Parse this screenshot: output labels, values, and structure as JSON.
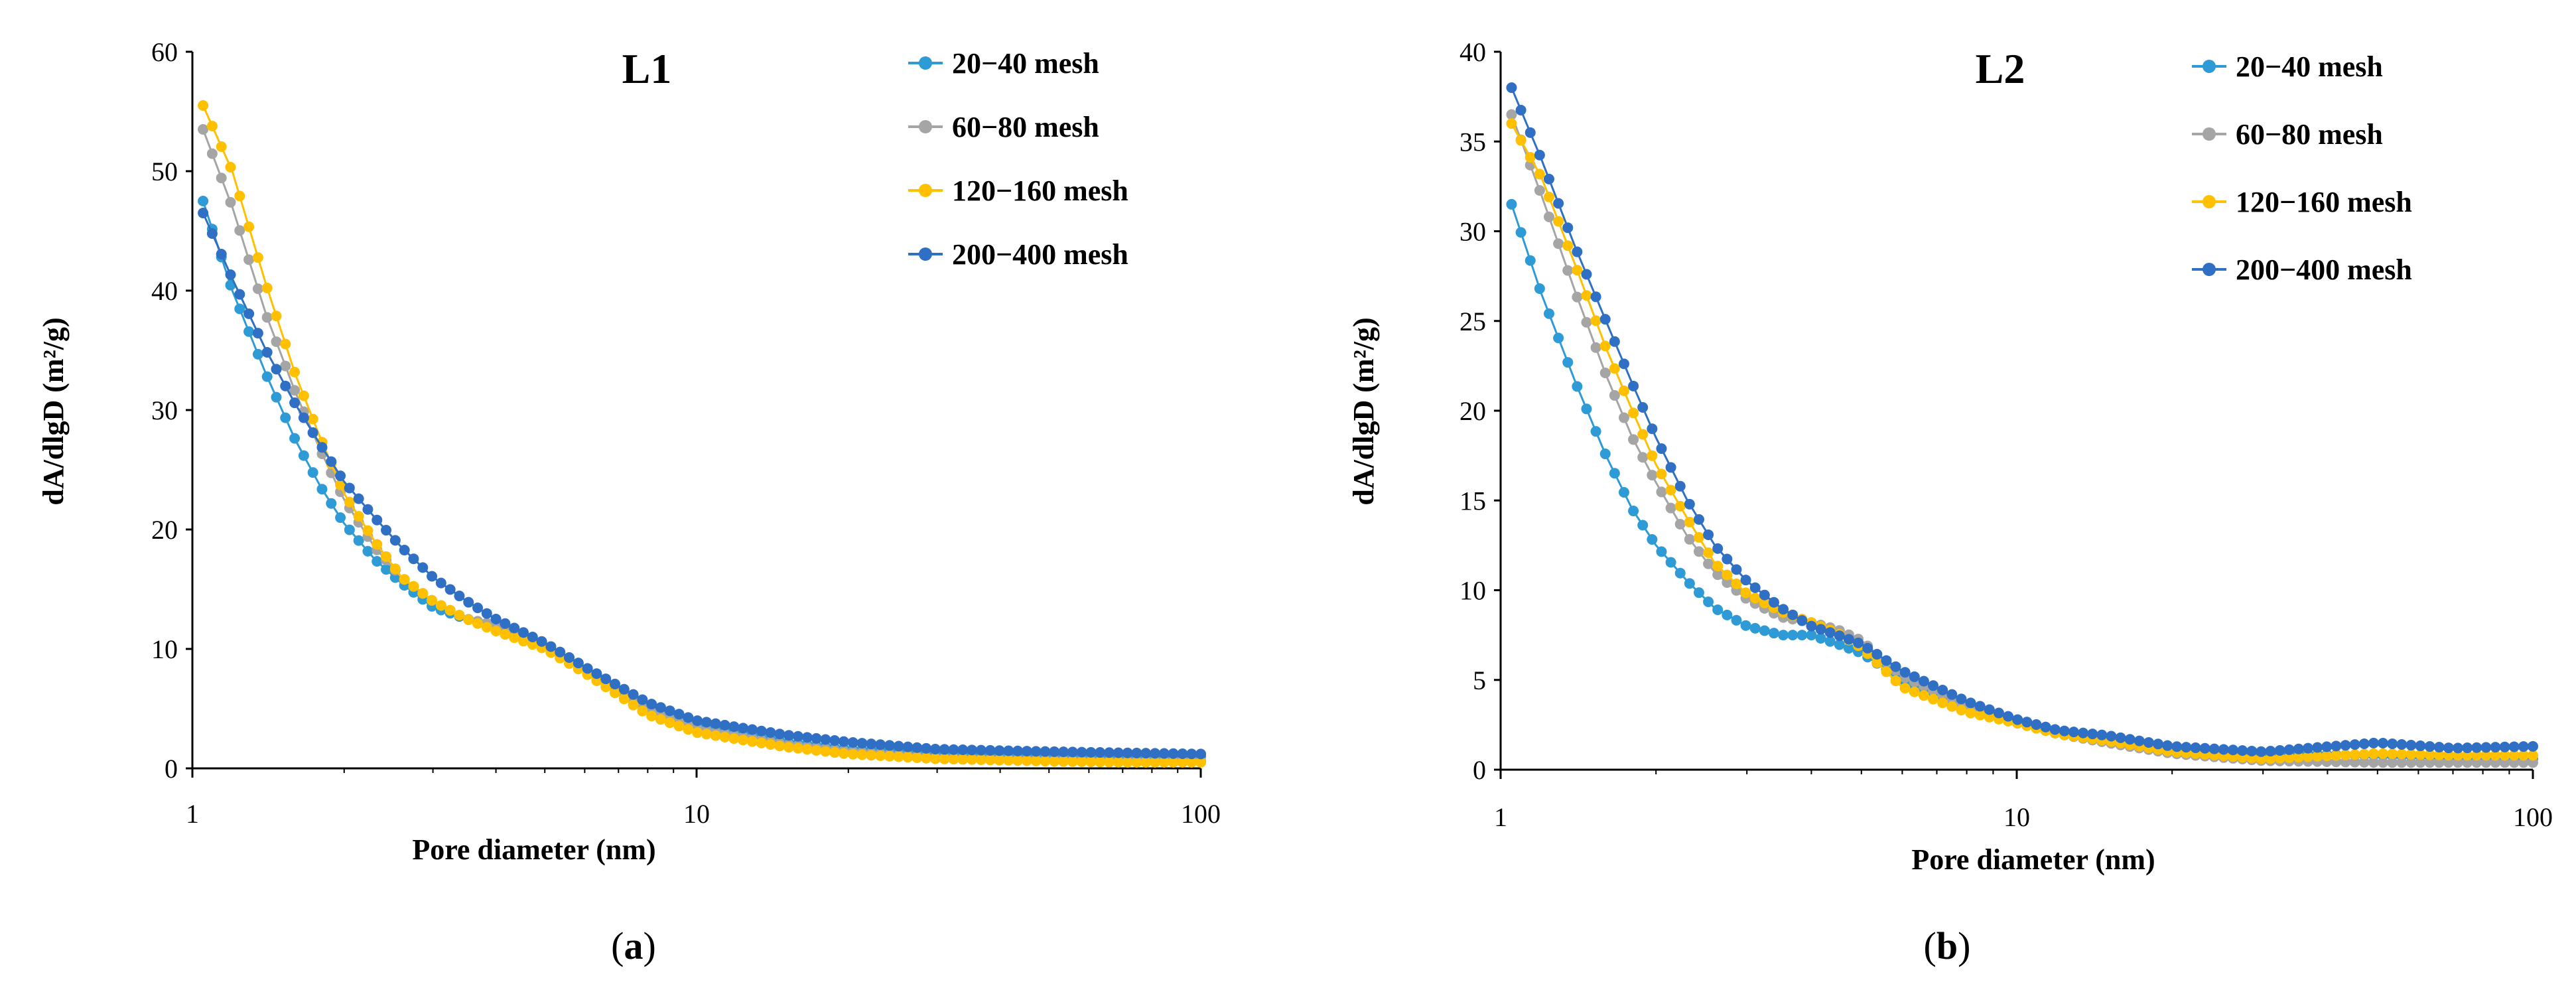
{
  "chart_data": [
    {
      "type": "line",
      "title": "L1",
      "caption_letter": "a",
      "xlabel": "Pore diameter (nm)",
      "ylabel": "dA/dlgD (m²/g)",
      "xscale": "log",
      "xlim": [
        1,
        100
      ],
      "ylim": [
        0,
        60
      ],
      "xticks": [
        1,
        10,
        100
      ],
      "yticks": [
        0,
        10,
        20,
        30,
        40,
        50,
        60
      ],
      "legend_position": "top-right",
      "series": [
        {
          "name": "20−40 mesh",
          "color": "#2e9bd6",
          "x": [
            1.05,
            1.2,
            1.4,
            1.6,
            1.8,
            2.0,
            2.3,
            2.6,
            3.0,
            3.5,
            4.0,
            5.0,
            6.0,
            8.0,
            10,
            15,
            20,
            30,
            50,
            70,
            100
          ],
          "y": [
            47.5,
            40.0,
            33.0,
            27.5,
            23.5,
            20.5,
            17.5,
            15.5,
            13.5,
            12.5,
            12.0,
            10.5,
            8.5,
            5.0,
            3.5,
            2.2,
            1.6,
            1.2,
            1.0,
            1.0,
            1.0
          ]
        },
        {
          "name": "60−80 mesh",
          "color": "#a5a5a5",
          "x": [
            1.05,
            1.2,
            1.4,
            1.6,
            1.8,
            2.0,
            2.3,
            2.6,
            3.0,
            3.5,
            4.0,
            5.0,
            6.0,
            8.0,
            10,
            15,
            20,
            30,
            50,
            70,
            100
          ],
          "y": [
            53.5,
            47.0,
            38.0,
            31.5,
            26.5,
            22.5,
            18.5,
            16.0,
            14.0,
            12.5,
            12.0,
            10.5,
            8.5,
            4.8,
            3.3,
            2.0,
            1.4,
            0.9,
            0.7,
            0.6,
            0.6
          ]
        },
        {
          "name": "120−160 mesh",
          "color": "#ffc000",
          "x": [
            1.05,
            1.2,
            1.4,
            1.6,
            1.8,
            2.0,
            2.3,
            2.6,
            3.0,
            3.5,
            4.0,
            5.0,
            6.0,
            8.0,
            10,
            15,
            20,
            30,
            50,
            70,
            100
          ],
          "y": [
            55.5,
            50.0,
            40.5,
            33.0,
            27.5,
            23.0,
            19.0,
            16.0,
            14.0,
            12.5,
            11.5,
            10.0,
            8.0,
            4.5,
            3.0,
            1.8,
            1.2,
            0.8,
            0.6,
            0.5,
            0.5
          ]
        },
        {
          "name": "200−400 mesh",
          "color": "#2f6fc4",
          "x": [
            1.05,
            1.2,
            1.4,
            1.6,
            1.8,
            2.0,
            2.3,
            2.6,
            3.0,
            3.5,
            4.0,
            5.0,
            6.0,
            8.0,
            10,
            15,
            20,
            30,
            50,
            70,
            100
          ],
          "y": [
            46.5,
            41.0,
            35.0,
            30.5,
            27.0,
            24.0,
            21.0,
            18.5,
            16.0,
            14.0,
            12.5,
            10.5,
            8.5,
            5.5,
            4.0,
            2.8,
            2.2,
            1.6,
            1.4,
            1.3,
            1.2
          ]
        }
      ]
    },
    {
      "type": "line",
      "title": "L2",
      "caption_letter": "b",
      "xlabel": "Pore diameter (nm)",
      "ylabel": "dA/dlgD (m²/g)",
      "xscale": "log",
      "xlim": [
        1,
        100
      ],
      "ylim": [
        0,
        40
      ],
      "xticks": [
        1,
        10,
        100
      ],
      "yticks": [
        0,
        5,
        10,
        15,
        20,
        25,
        30,
        35,
        40
      ],
      "legend_position": "top-right",
      "series": [
        {
          "name": "20−40 mesh",
          "color": "#2e9bd6",
          "x": [
            1.05,
            1.2,
            1.4,
            1.6,
            1.8,
            2.0,
            2.3,
            2.6,
            3.0,
            3.5,
            4.0,
            4.5,
            5.0,
            6.0,
            8.0,
            10,
            12,
            15,
            20,
            30,
            50,
            70,
            100
          ],
          "y": [
            31.5,
            26.5,
            21.5,
            17.5,
            14.5,
            12.5,
            10.5,
            9.0,
            8.0,
            7.5,
            7.5,
            7.0,
            6.5,
            5.0,
            3.5,
            2.8,
            2.2,
            1.8,
            1.2,
            0.9,
            0.8,
            0.7,
            0.6
          ]
        },
        {
          "name": "60−80 mesh",
          "color": "#a5a5a5",
          "x": [
            1.05,
            1.2,
            1.4,
            1.6,
            1.8,
            2.0,
            2.3,
            2.6,
            3.0,
            3.5,
            4.0,
            4.5,
            5.0,
            6.0,
            8.0,
            10,
            12,
            15,
            20,
            30,
            50,
            70,
            100
          ],
          "y": [
            36.5,
            32.0,
            26.5,
            22.0,
            18.5,
            16.0,
            13.0,
            11.0,
            9.5,
            8.5,
            8.2,
            7.8,
            7.2,
            5.2,
            3.6,
            2.6,
            2.0,
            1.5,
            0.9,
            0.5,
            0.4,
            0.4,
            0.4
          ]
        },
        {
          "name": "120−160 mesh",
          "color": "#ffc000",
          "x": [
            1.05,
            1.2,
            1.4,
            1.6,
            1.8,
            2.0,
            2.3,
            2.6,
            3.0,
            3.5,
            4.0,
            4.5,
            5.0,
            6.0,
            8.0,
            10,
            12,
            15,
            20,
            30,
            50,
            70,
            100
          ],
          "y": [
            36.0,
            33.0,
            28.0,
            23.5,
            20.0,
            17.0,
            14.0,
            11.5,
            9.8,
            8.8,
            8.2,
            7.6,
            6.8,
            4.6,
            3.2,
            2.6,
            2.0,
            1.6,
            1.0,
            0.6,
            0.9,
            0.8,
            0.8
          ]
        },
        {
          "name": "200−400 mesh",
          "color": "#2f6fc4",
          "x": [
            1.05,
            1.2,
            1.4,
            1.6,
            1.8,
            2.0,
            2.3,
            2.6,
            3.0,
            3.5,
            4.0,
            4.5,
            5.0,
            6.0,
            8.0,
            10,
            12,
            15,
            20,
            30,
            50,
            70,
            100
          ],
          "y": [
            38.0,
            34.0,
            29.0,
            25.0,
            21.5,
            18.5,
            15.0,
            12.5,
            10.5,
            9.0,
            8.0,
            7.5,
            7.0,
            5.5,
            3.8,
            2.8,
            2.2,
            1.9,
            1.3,
            1.0,
            1.5,
            1.2,
            1.3
          ]
        }
      ]
    }
  ]
}
